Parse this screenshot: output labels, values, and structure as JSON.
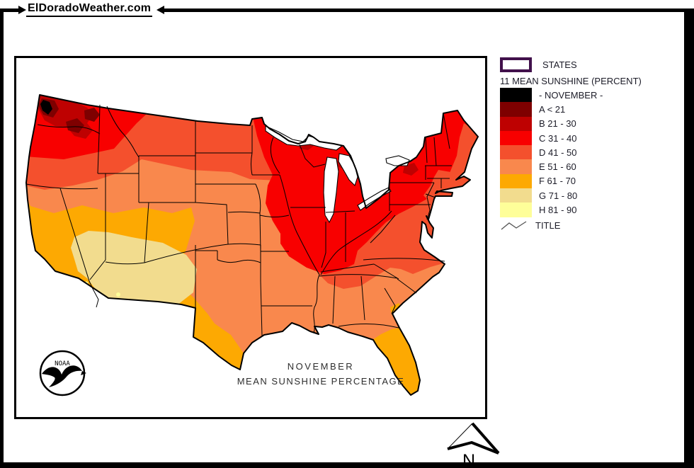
{
  "page": {
    "title": "ElDoradoWeather.com"
  },
  "map": {
    "caption_line1": "NOVEMBER",
    "caption_line2": "MEAN SUNSHINE PERCENTAGE",
    "noaa_label": "NOAA",
    "north_label": "N"
  },
  "legend": {
    "states_label": "STATES",
    "heading": "11 MEAN SUNSHINE (PERCENT)",
    "classes": [
      {
        "label": "- NOVEMBER -",
        "color": "#000000"
      },
      {
        "label": "A < 21",
        "color": "#7E0000"
      },
      {
        "label": "B 21 - 30",
        "color": "#BE0101"
      },
      {
        "label": "C 31 - 40",
        "color": "#F80000"
      },
      {
        "label": "D 41 - 50",
        "color": "#F4502D"
      },
      {
        "label": "E 51 - 60",
        "color": "#F9884D"
      },
      {
        "label": "F 61 - 70",
        "color": "#FDA902"
      },
      {
        "label": "G 71 - 80",
        "color": "#F2DC8E"
      },
      {
        "label": "H 81 - 90",
        "color": "#FEFE99"
      }
    ],
    "title_label": "TITLE"
  },
  "palette": {
    "black": "#000000",
    "A": "#7E0000",
    "B": "#BE0101",
    "C": "#F80000",
    "D": "#F4502D",
    "E": "#F9884D",
    "F": "#FDA902",
    "G": "#F2DC8E",
    "H": "#FEFE99",
    "states_border": "#41104B",
    "water": "#FFFFFF"
  }
}
